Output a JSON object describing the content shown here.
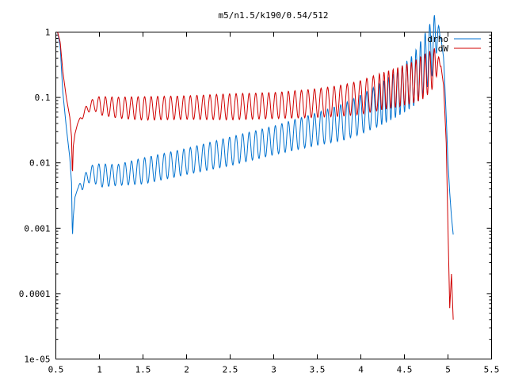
{
  "chart_data": {
    "type": "line",
    "title": "m5/n1.5/k190/0.54/512",
    "xlabel": "",
    "ylabel": "",
    "xlim": [
      0.5,
      5.5
    ],
    "ylim": [
      1e-05,
      1
    ],
    "yscale": "log",
    "grid": false,
    "legend_position": "top-right",
    "x_ticks": [
      "0.5",
      "1",
      "1.5",
      "2",
      "2.5",
      "3",
      "3.5",
      "4",
      "4.5",
      "5",
      "5.5"
    ],
    "y_ticks": [
      "1",
      "0.1",
      "0.01",
      "0.001",
      "0.0001",
      "1e-05"
    ],
    "series": [
      {
        "name": "drho",
        "color": "#0072d0",
        "x": [
          0.52,
          0.55,
          0.58,
          0.62,
          0.66,
          0.68,
          0.69,
          0.7,
          0.72,
          0.75,
          0.8,
          0.85,
          0.9,
          0.95,
          1.0,
          1.2,
          1.5,
          2.0,
          2.5,
          3.0,
          3.5,
          3.8,
          4.0,
          4.2,
          4.4,
          4.6,
          4.7,
          4.8,
          4.85,
          4.88,
          4.92,
          4.95,
          4.98,
          5.0,
          5.02,
          5.04,
          5.06
        ],
        "y": [
          1.0,
          0.6,
          0.12,
          0.035,
          0.012,
          0.005,
          0.0007,
          0.0015,
          0.003,
          0.004,
          0.0048,
          0.0058,
          0.0068,
          0.0068,
          0.0064,
          0.0065,
          0.0075,
          0.0105,
          0.015,
          0.022,
          0.033,
          0.042,
          0.055,
          0.075,
          0.11,
          0.18,
          0.28,
          0.5,
          0.75,
          1.0,
          0.8,
          0.4,
          0.05,
          0.01,
          0.0035,
          0.0015,
          0.0008
        ],
        "osc_amp": [
          0,
          0,
          0,
          0,
          0,
          0,
          0,
          0,
          0,
          0,
          0.1,
          0.1,
          0.12,
          0.15,
          0.18,
          0.16,
          0.2,
          0.2,
          0.22,
          0.22,
          0.25,
          0.28,
          0.3,
          0.32,
          0.35,
          0.4,
          0.45,
          0.45,
          0.4,
          0.2,
          0,
          0,
          0,
          0,
          0,
          0,
          0
        ]
      },
      {
        "name": "dW",
        "color": "#d00000",
        "x": [
          0.52,
          0.55,
          0.58,
          0.62,
          0.66,
          0.68,
          0.69,
          0.7,
          0.72,
          0.75,
          0.8,
          0.85,
          0.9,
          0.95,
          1.0,
          1.2,
          1.5,
          2.0,
          2.5,
          3.0,
          3.5,
          3.8,
          4.0,
          4.2,
          4.4,
          4.6,
          4.7,
          4.8,
          4.85,
          4.88,
          4.92,
          4.95,
          4.98,
          5.0,
          5.02,
          5.04,
          5.06
        ],
        "y": [
          1.0,
          0.7,
          0.25,
          0.1,
          0.05,
          0.025,
          0.006,
          0.018,
          0.028,
          0.04,
          0.052,
          0.065,
          0.075,
          0.078,
          0.075,
          0.07,
          0.068,
          0.07,
          0.072,
          0.075,
          0.082,
          0.09,
          0.1,
          0.12,
          0.14,
          0.17,
          0.2,
          0.25,
          0.3,
          0.35,
          0.3,
          0.15,
          0.02,
          0.001,
          6e-05,
          0.0002,
          4e-05
        ],
        "osc_amp": [
          0,
          0,
          0,
          0,
          0,
          0,
          0,
          0,
          0,
          0,
          0.05,
          0.06,
          0.08,
          0.1,
          0.14,
          0.16,
          0.18,
          0.18,
          0.2,
          0.2,
          0.22,
          0.24,
          0.26,
          0.28,
          0.3,
          0.32,
          0.34,
          0.32,
          0.28,
          0.15,
          0,
          0,
          0,
          0,
          0,
          0,
          0
        ]
      }
    ],
    "osc_period": 0.075
  }
}
